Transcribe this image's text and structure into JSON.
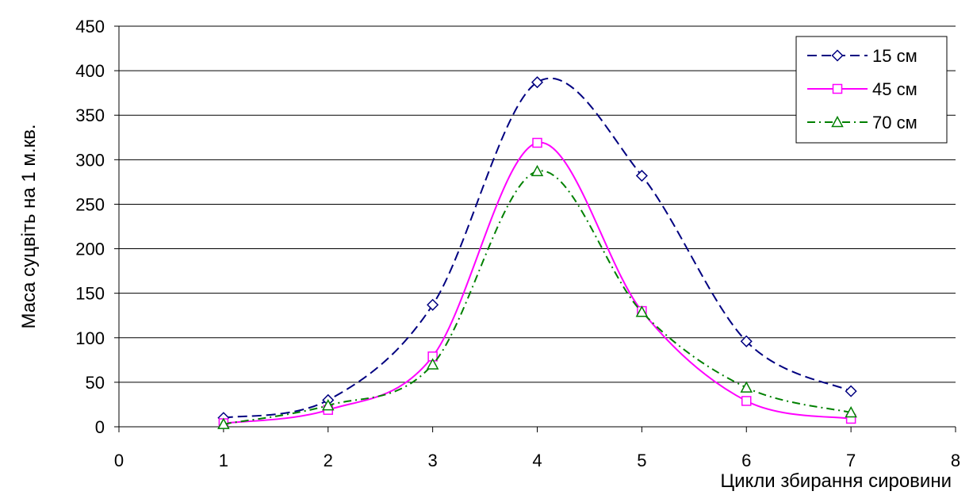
{
  "chart_data": {
    "type": "line",
    "xlabel": "Цикли збирання сировини",
    "ylabel": "Маса суцвіть на 1 м.кв.",
    "xlim": [
      0,
      8
    ],
    "ylim": [
      0,
      450
    ],
    "x_ticks": [
      0,
      1,
      2,
      3,
      4,
      5,
      6,
      7,
      8
    ],
    "y_ticks": [
      0,
      50,
      100,
      150,
      200,
      250,
      300,
      350,
      400,
      450
    ],
    "grid": "horizontal",
    "legend_position": "top-right",
    "x": [
      1,
      2,
      3,
      4,
      5,
      6,
      7
    ],
    "series": [
      {
        "name": "15 см",
        "values": [
          10,
          30,
          137,
          387,
          282,
          96,
          40
        ],
        "color": "#000080",
        "dash": "dashed",
        "marker": "diamond"
      },
      {
        "name": "45 см",
        "values": [
          4,
          19,
          79,
          319,
          130,
          29,
          9
        ],
        "color": "#FF00FF",
        "dash": "solid",
        "marker": "square"
      },
      {
        "name": "70 см",
        "values": [
          3,
          24,
          70,
          287,
          129,
          44,
          16
        ],
        "color": "#008000",
        "dash": "dashdot",
        "marker": "triangle"
      }
    ]
  }
}
